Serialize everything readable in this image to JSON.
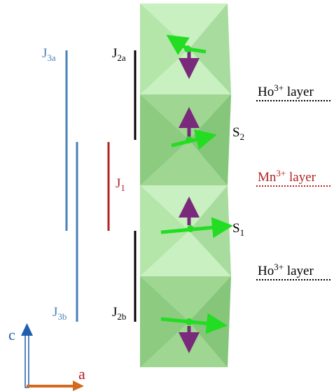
{
  "labels": {
    "j3a": {
      "main": "J",
      "sub": "3a"
    },
    "j2a": {
      "main": "J",
      "sub": "2a"
    },
    "j1": {
      "main": "J",
      "sub": "1"
    },
    "j3b": {
      "main": "J",
      "sub": "3b"
    },
    "j2b": {
      "main": "J",
      "sub": "2b"
    },
    "s2": {
      "main": "S",
      "sub": "2"
    },
    "s1": {
      "main": "S",
      "sub": "1"
    },
    "layers": [
      {
        "ion": "Ho",
        "charge": "3+",
        "rest": " layer"
      },
      {
        "ion": "Mn",
        "charge": "3+",
        "rest": " layer"
      },
      {
        "ion": "Ho",
        "charge": "3+",
        "rest": " layer"
      }
    ],
    "axis_c": "c",
    "axis_a": "a"
  }
}
